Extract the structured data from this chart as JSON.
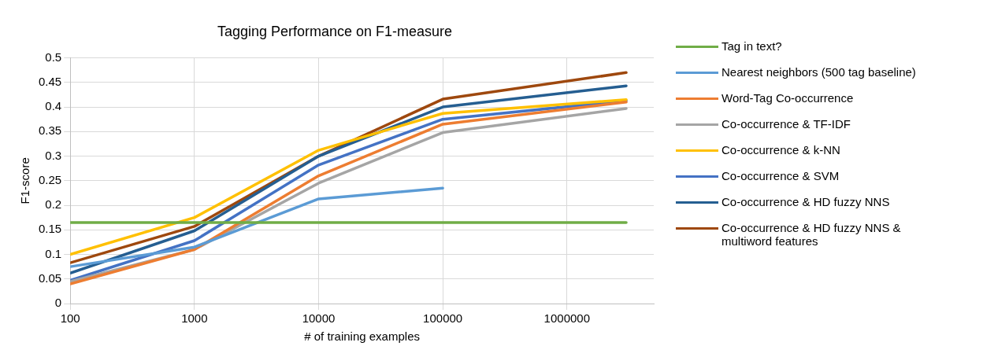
{
  "chart_data": {
    "type": "line",
    "title": "Tagging Performance on F1-measure",
    "xlabel": "# of training examples",
    "ylabel": "F1-score",
    "x": [
      100,
      1000,
      10000,
      100000,
      3000000
    ],
    "log": "x",
    "xlim": [
      100,
      5000000
    ],
    "xticks": [
      100,
      1000,
      10000,
      100000,
      1000000
    ],
    "ylim": [
      0,
      0.5
    ],
    "yticks": [
      0,
      0.05,
      0.1,
      0.15,
      0.2,
      0.25,
      0.3,
      0.35,
      0.4,
      0.45,
      0.5
    ],
    "grid": true,
    "legend": "right",
    "marker": "none",
    "line_style": "solid",
    "series": [
      {
        "name": "Tag in text?",
        "color": "#70ad47",
        "values": [
          0.165,
          0.165,
          0.165,
          0.165,
          0.165
        ]
      },
      {
        "name": "Nearest neighbors (500 tag baseline)",
        "color": "#5b9bd5",
        "values": [
          0.075,
          0.115,
          0.213,
          0.235,
          null
        ]
      },
      {
        "name": "Word-Tag Co-occurrence",
        "color": "#ed7d31",
        "values": [
          0.04,
          0.11,
          0.26,
          0.365,
          0.41
        ]
      },
      {
        "name": "Co-occurrence & TF-IDF",
        "color": "#a5a5a5",
        "values": [
          0.045,
          0.11,
          0.245,
          0.348,
          0.397
        ]
      },
      {
        "name": "Co-occurrence & k-NN",
        "color": "#ffc000",
        "values": [
          0.1,
          0.175,
          0.312,
          0.387,
          0.415
        ]
      },
      {
        "name": "Co-occurrence & SVM",
        "color": "#4472c4",
        "values": [
          0.047,
          0.128,
          0.282,
          0.375,
          0.413
        ]
      },
      {
        "name": "Co-occurrence & HD fuzzy NNS",
        "color": "#255e91",
        "values": [
          0.062,
          0.148,
          0.3,
          0.4,
          0.443
        ]
      },
      {
        "name": "Co-occurrence & HD fuzzy NNS & multiword features",
        "color": "#9e480e",
        "values": [
          0.083,
          0.157,
          0.3,
          0.416,
          0.47
        ]
      }
    ]
  }
}
